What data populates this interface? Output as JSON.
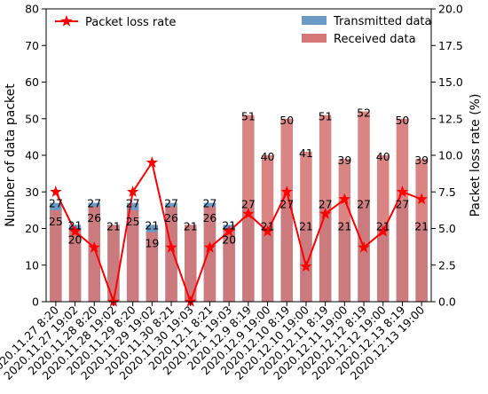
{
  "chart_data": {
    "type": "bar",
    "categories": [
      "2020.11.27 8:20",
      "2020.11.27 19:02",
      "2020.11.28 8:20",
      "2020.11.28 19:02",
      "2020.11.29 8:20",
      "2020.11.29 19:02",
      "2020.11.30 8:21",
      "2020.11.30 19:03",
      "2020.12.1 8:21",
      "2020.12.1 19:03",
      "2020.12.9 8:19",
      "2020.12.9 19:00",
      "2020.12.10 8:19",
      "2020.12.10 19:00",
      "2020.12.11 8:19",
      "2020.12.11 19:00",
      "2020.12.12 8:19",
      "2020.12.12 19:00",
      "2020.12.13 8:19",
      "2020.12.13 19:00"
    ],
    "series": [
      {
        "name": "Transmitted data",
        "values": [
          27,
          21,
          27,
          21,
          27,
          21,
          27,
          21,
          27,
          21,
          27,
          21,
          27,
          21,
          27,
          21,
          27,
          21,
          27,
          21
        ],
        "color": "#6b9ac4"
      },
      {
        "name": "Received data",
        "values": [
          25,
          20,
          26,
          21,
          25,
          19,
          26,
          21,
          26,
          20,
          51,
          40,
          50,
          41,
          51,
          39,
          52,
          40,
          50,
          39
        ],
        "color": "#d67777"
      },
      {
        "name": "Packet loss rate",
        "values": [
          7.5,
          4.8,
          3.7,
          0.0,
          7.5,
          9.5,
          3.7,
          0.0,
          3.7,
          4.8,
          6.0,
          4.8,
          7.5,
          2.4,
          6.0,
          7.0,
          3.7,
          4.8,
          7.5,
          7.0
        ],
        "color": "#ff0000",
        "axis": "right"
      }
    ],
    "data_labels": {
      "transmitted": [
        "27",
        "21",
        "27",
        "21",
        "27",
        "21",
        "27",
        "21",
        "27",
        "21",
        "27",
        "21",
        "27",
        "21",
        "27",
        "21",
        "27",
        "21",
        "27",
        "21"
      ],
      "received": [
        "25",
        "20",
        "26",
        "21",
        "25",
        "19",
        "26",
        "21",
        "26",
        "20",
        "51",
        "40",
        "50",
        "41",
        "51",
        "39",
        "52",
        "40",
        "50",
        "39"
      ]
    },
    "ylabel": "Number of data packet",
    "ylim": [
      0,
      80
    ],
    "yticks": [
      "0",
      "10",
      "20",
      "30",
      "40",
      "50",
      "60",
      "70",
      "80"
    ],
    "y2label": "Packet loss rate (%)",
    "y2lim": [
      0,
      20
    ],
    "y2ticks": [
      "0.0",
      "2.5",
      "5.0",
      "7.5",
      "10.0",
      "12.5",
      "15.0",
      "17.5",
      "20.0"
    ],
    "legend_left": "Packet loss rate",
    "legend_right": [
      "Transmitted data",
      "Received data"
    ],
    "grid": false
  }
}
